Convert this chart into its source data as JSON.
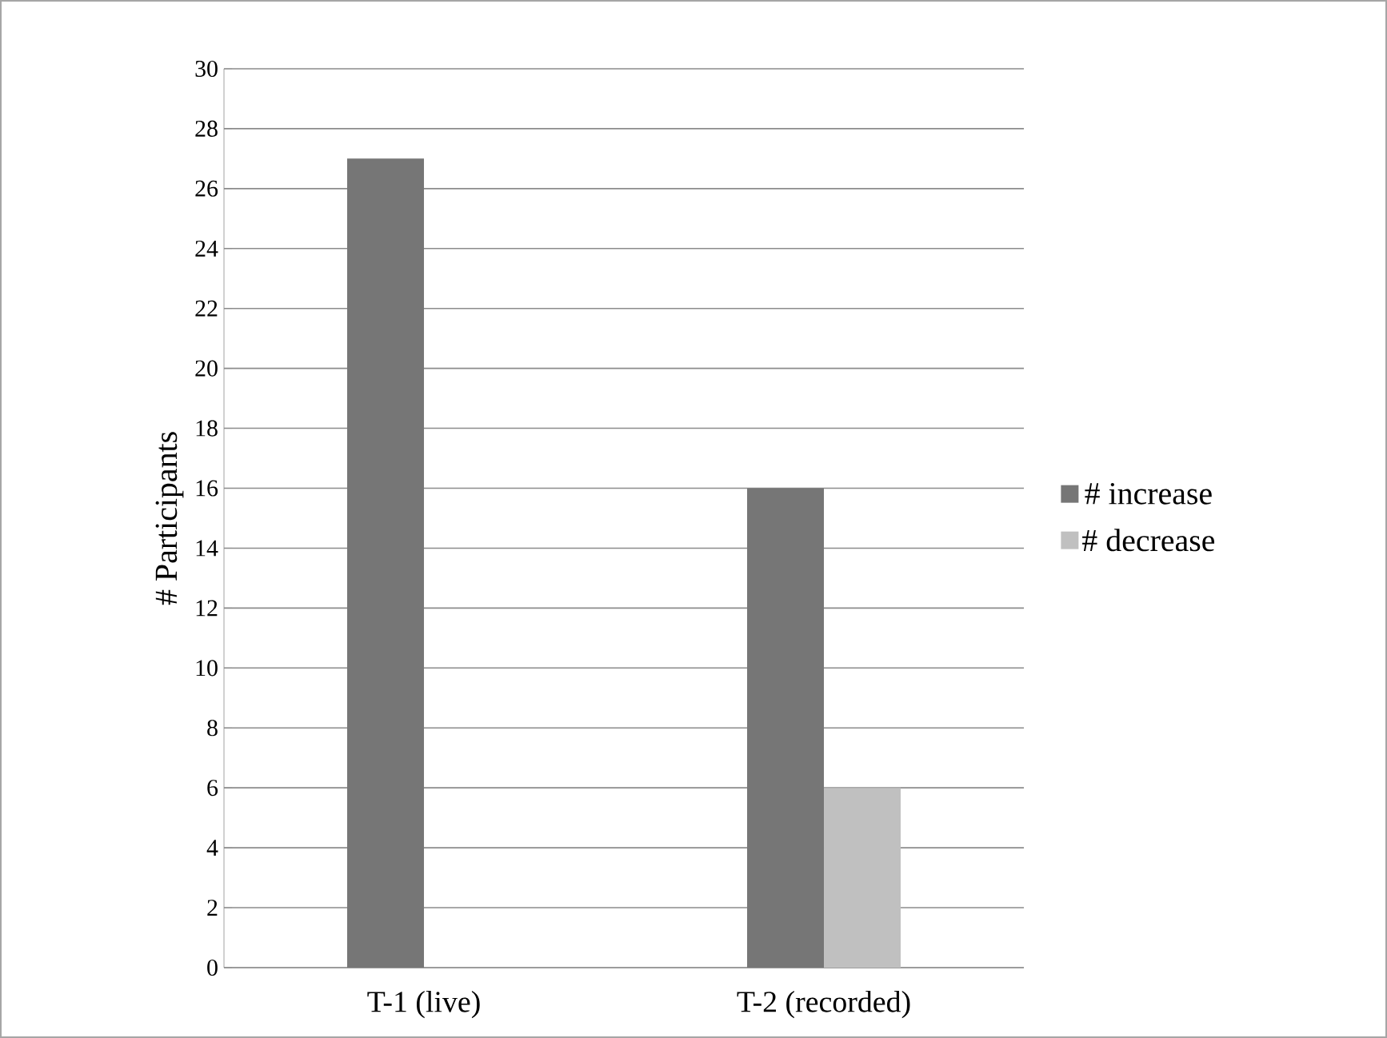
{
  "chart_data": {
    "type": "bar",
    "ylabel": "# Participants",
    "categories": [
      "T-1 (live)",
      "T-2 (recorded)"
    ],
    "series": [
      {
        "name": "# increase",
        "color": "#767676",
        "values": [
          27,
          16
        ]
      },
      {
        "name": "# decrease",
        "color": "#c0c0c0",
        "values": [
          0,
          6
        ]
      }
    ],
    "ylim": [
      0,
      30
    ],
    "yticks": [
      0,
      2,
      4,
      6,
      8,
      10,
      12,
      14,
      16,
      18,
      20,
      22,
      24,
      26,
      28,
      30
    ],
    "grid": "y",
    "legend": "right"
  }
}
